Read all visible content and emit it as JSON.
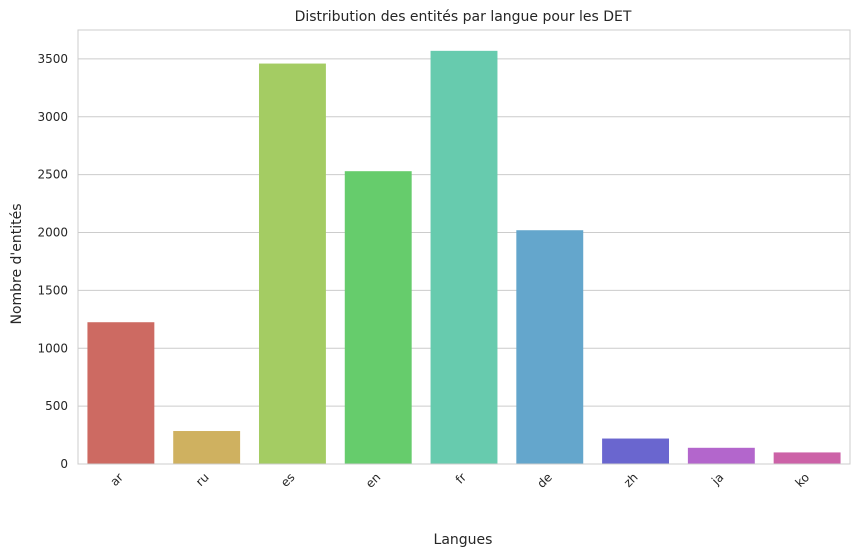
{
  "chart_data": {
    "type": "bar",
    "title": "Distribution des entités par langue pour les DET",
    "xlabel": "Langues",
    "ylabel": "Nombre d'entités",
    "categories": [
      "ar",
      "ru",
      "es",
      "en",
      "fr",
      "de",
      "zh",
      "ja",
      "ko"
    ],
    "values": [
      1225,
      285,
      3460,
      2530,
      3570,
      2020,
      220,
      140,
      100
    ],
    "colors": [
      "#cd6a62",
      "#cfb160",
      "#a4cc63",
      "#66cc6c",
      "#67cbae",
      "#64a6cc",
      "#6a66cf",
      "#b366cc",
      "#cc62a7"
    ],
    "yticks": [
      0,
      500,
      1000,
      1500,
      2000,
      2500,
      3000,
      3500
    ],
    "ytick_labels": [
      "0",
      "500",
      "1000",
      "1500",
      "2000",
      "2500",
      "3000",
      "3500"
    ],
    "ylim": [
      0,
      3750
    ],
    "grid": "horizontal"
  }
}
